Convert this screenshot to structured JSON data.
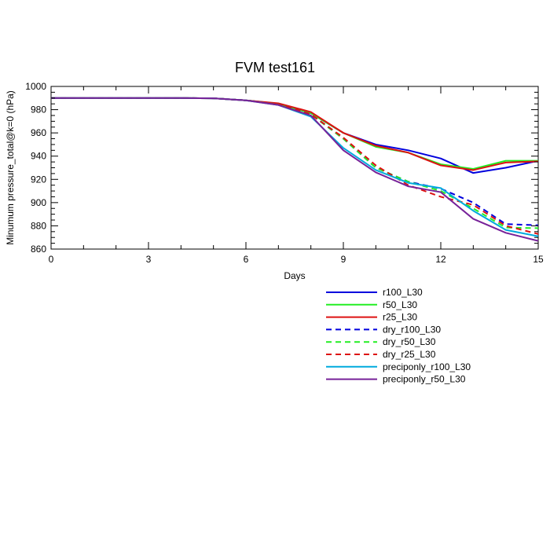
{
  "chart_data": {
    "type": "line",
    "title": "FVM test161",
    "xlabel": "Days",
    "ylabel": "Minumum pressure_total@k=0 (hPa)",
    "xlim": [
      0,
      15
    ],
    "ylim": [
      860,
      1000
    ],
    "xticks": [
      0,
      3,
      6,
      9,
      12,
      15
    ],
    "yticks": [
      860,
      880,
      900,
      920,
      940,
      960,
      980,
      1000
    ],
    "grid": false,
    "legend": "below-right",
    "x": [
      0,
      1,
      2,
      3,
      4,
      5,
      6,
      7,
      8,
      9,
      10,
      11,
      12,
      13,
      14,
      15
    ],
    "series": [
      {
        "name": "r100_L30",
        "color": "#0000dd",
        "dash": "solid",
        "values": [
          990,
          990,
          990,
          990,
          990,
          989.8,
          988,
          985,
          977,
          960,
          950,
          945,
          938,
          925.5,
          930,
          936
        ]
      },
      {
        "name": "r50_L30",
        "color": "#22ee22",
        "dash": "solid",
        "values": [
          990,
          990,
          990,
          990,
          990,
          989.8,
          988,
          985,
          977,
          960,
          948,
          943,
          933,
          929,
          936,
          936
        ]
      },
      {
        "name": "r25_L30",
        "color": "#dd1111",
        "dash": "solid",
        "values": [
          990,
          990,
          990,
          990,
          990,
          989.8,
          988,
          985.5,
          978,
          960,
          949,
          943,
          932,
          928,
          934.5,
          935.5
        ]
      },
      {
        "name": "dry_r100_L30",
        "color": "#0000dd",
        "dash": "dashed",
        "values": [
          990,
          990,
          990,
          990,
          990,
          989.8,
          988,
          985,
          976,
          955,
          930,
          918,
          912,
          900,
          881.5,
          880.5
        ]
      },
      {
        "name": "dry_r50_L30",
        "color": "#22ee22",
        "dash": "dashed",
        "values": [
          990,
          990,
          990,
          990,
          990,
          989.8,
          988,
          985,
          976,
          955,
          930,
          918,
          910,
          895,
          878.5,
          878
        ]
      },
      {
        "name": "dry_r25_L30",
        "color": "#dd1111",
        "dash": "dashed",
        "values": [
          990,
          990,
          990,
          990,
          990,
          989.8,
          988,
          985,
          976,
          956,
          932,
          915,
          905,
          898,
          880,
          873
        ]
      },
      {
        "name": "preciponly_r100_L30",
        "color": "#00aadd",
        "dash": "solid",
        "values": [
          990,
          990,
          990,
          990,
          990,
          989.8,
          988,
          984,
          974,
          947,
          928,
          917,
          912.5,
          893,
          876.5,
          871
        ]
      },
      {
        "name": "preciponly_r50_L30",
        "color": "#772299",
        "dash": "solid",
        "values": [
          990,
          990,
          990,
          990,
          990,
          989.8,
          988,
          984,
          975,
          945,
          926,
          914,
          909,
          886,
          874,
          867
        ]
      }
    ]
  }
}
